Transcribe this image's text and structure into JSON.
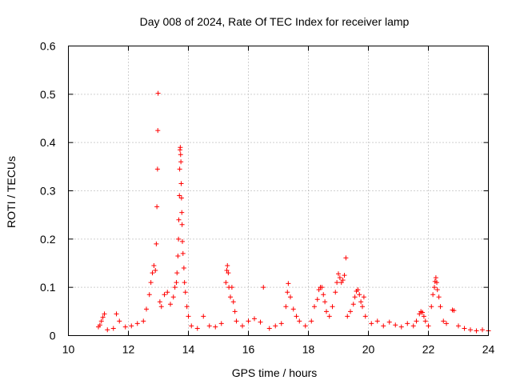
{
  "chart_data": {
    "type": "scatter",
    "title": "Day 008 of 2024, Rate Of TEC Index for receiver lamp",
    "xlabel": "GPS time / hours",
    "ylabel": "ROTI / TECUs",
    "xlim": [
      10,
      24
    ],
    "ylim": [
      0,
      0.6
    ],
    "xticks": [
      10,
      12,
      14,
      16,
      18,
      20,
      22,
      24
    ],
    "yticks": [
      0,
      0.1,
      0.2,
      0.3,
      0.4,
      0.5,
      0.6
    ],
    "xtick_labels": [
      "10",
      "12",
      "14",
      "16",
      "18",
      "20",
      "22",
      "24"
    ],
    "ytick_labels": [
      "0",
      "0.1",
      "0.2",
      "0.3",
      "0.4",
      "0.5",
      "0.6"
    ],
    "grid": true,
    "marker": "+",
    "color": "#ff0000",
    "series": [
      {
        "name": "ROTI",
        "points": [
          [
            11.0,
            0.018
          ],
          [
            11.05,
            0.022
          ],
          [
            11.1,
            0.03
          ],
          [
            11.15,
            0.038
          ],
          [
            11.2,
            0.045
          ],
          [
            11.3,
            0.012
          ],
          [
            11.5,
            0.015
          ],
          [
            11.6,
            0.045
          ],
          [
            11.7,
            0.03
          ],
          [
            11.9,
            0.018
          ],
          [
            12.1,
            0.02
          ],
          [
            12.3,
            0.025
          ],
          [
            12.5,
            0.03
          ],
          [
            12.6,
            0.055
          ],
          [
            12.7,
            0.085
          ],
          [
            12.75,
            0.11
          ],
          [
            12.8,
            0.13
          ],
          [
            12.85,
            0.145
          ],
          [
            12.9,
            0.135
          ],
          [
            12.93,
            0.19
          ],
          [
            12.95,
            0.267
          ],
          [
            12.97,
            0.345
          ],
          [
            12.98,
            0.425
          ],
          [
            12.99,
            0.502
          ],
          [
            13.05,
            0.07
          ],
          [
            13.1,
            0.06
          ],
          [
            13.2,
            0.085
          ],
          [
            13.3,
            0.09
          ],
          [
            13.4,
            0.065
          ],
          [
            13.5,
            0.08
          ],
          [
            13.55,
            0.1
          ],
          [
            13.6,
            0.11
          ],
          [
            13.62,
            0.13
          ],
          [
            13.65,
            0.165
          ],
          [
            13.67,
            0.2
          ],
          [
            13.68,
            0.24
          ],
          [
            13.7,
            0.29
          ],
          [
            13.71,
            0.345
          ],
          [
            13.72,
            0.385
          ],
          [
            13.73,
            0.39
          ],
          [
            13.74,
            0.375
          ],
          [
            13.75,
            0.36
          ],
          [
            13.76,
            0.315
          ],
          [
            13.77,
            0.285
          ],
          [
            13.78,
            0.255
          ],
          [
            13.79,
            0.23
          ],
          [
            13.8,
            0.195
          ],
          [
            13.82,
            0.17
          ],
          [
            13.85,
            0.14
          ],
          [
            13.87,
            0.11
          ],
          [
            13.9,
            0.09
          ],
          [
            13.95,
            0.06
          ],
          [
            14.0,
            0.04
          ],
          [
            14.1,
            0.02
          ],
          [
            14.3,
            0.015
          ],
          [
            14.5,
            0.04
          ],
          [
            14.7,
            0.02
          ],
          [
            14.9,
            0.018
          ],
          [
            15.1,
            0.025
          ],
          [
            15.25,
            0.11
          ],
          [
            15.28,
            0.135
          ],
          [
            15.3,
            0.145
          ],
          [
            15.33,
            0.13
          ],
          [
            15.35,
            0.1
          ],
          [
            15.4,
            0.08
          ],
          [
            15.45,
            0.1
          ],
          [
            15.5,
            0.07
          ],
          [
            15.55,
            0.05
          ],
          [
            15.6,
            0.03
          ],
          [
            15.8,
            0.02
          ],
          [
            16.0,
            0.03
          ],
          [
            16.2,
            0.035
          ],
          [
            16.4,
            0.028
          ],
          [
            16.5,
            0.1
          ],
          [
            16.7,
            0.015
          ],
          [
            16.9,
            0.02
          ],
          [
            17.1,
            0.025
          ],
          [
            17.25,
            0.06
          ],
          [
            17.3,
            0.09
          ],
          [
            17.33,
            0.108
          ],
          [
            17.4,
            0.08
          ],
          [
            17.5,
            0.055
          ],
          [
            17.6,
            0.04
          ],
          [
            17.7,
            0.03
          ],
          [
            17.9,
            0.02
          ],
          [
            18.1,
            0.03
          ],
          [
            18.2,
            0.06
          ],
          [
            18.3,
            0.075
          ],
          [
            18.35,
            0.095
          ],
          [
            18.4,
            0.1
          ],
          [
            18.45,
            0.1
          ],
          [
            18.5,
            0.085
          ],
          [
            18.55,
            0.07
          ],
          [
            18.6,
            0.05
          ],
          [
            18.7,
            0.04
          ],
          [
            18.8,
            0.06
          ],
          [
            18.9,
            0.09
          ],
          [
            18.95,
            0.11
          ],
          [
            19.0,
            0.128
          ],
          [
            19.05,
            0.12
          ],
          [
            19.1,
            0.11
          ],
          [
            19.15,
            0.115
          ],
          [
            19.2,
            0.125
          ],
          [
            19.25,
            0.161
          ],
          [
            19.3,
            0.04
          ],
          [
            19.4,
            0.05
          ],
          [
            19.5,
            0.065
          ],
          [
            19.55,
            0.08
          ],
          [
            19.6,
            0.092
          ],
          [
            19.65,
            0.095
          ],
          [
            19.7,
            0.085
          ],
          [
            19.75,
            0.07
          ],
          [
            19.8,
            0.06
          ],
          [
            19.85,
            0.08
          ],
          [
            19.9,
            0.04
          ],
          [
            20.1,
            0.025
          ],
          [
            20.3,
            0.03
          ],
          [
            20.5,
            0.02
          ],
          [
            20.7,
            0.028
          ],
          [
            20.9,
            0.022
          ],
          [
            21.1,
            0.018
          ],
          [
            21.3,
            0.025
          ],
          [
            21.5,
            0.02
          ],
          [
            21.6,
            0.03
          ],
          [
            21.7,
            0.045
          ],
          [
            21.75,
            0.05
          ],
          [
            21.8,
            0.048
          ],
          [
            21.85,
            0.04
          ],
          [
            21.9,
            0.03
          ],
          [
            22.0,
            0.02
          ],
          [
            22.1,
            0.06
          ],
          [
            22.15,
            0.085
          ],
          [
            22.2,
            0.1
          ],
          [
            22.22,
            0.112
          ],
          [
            22.25,
            0.12
          ],
          [
            22.28,
            0.11
          ],
          [
            22.3,
            0.095
          ],
          [
            22.35,
            0.08
          ],
          [
            22.4,
            0.06
          ],
          [
            22.5,
            0.03
          ],
          [
            22.6,
            0.025
          ],
          [
            22.8,
            0.053
          ],
          [
            22.85,
            0.052
          ],
          [
            23.0,
            0.02
          ],
          [
            23.2,
            0.015
          ],
          [
            23.4,
            0.012
          ],
          [
            23.6,
            0.01
          ],
          [
            23.8,
            0.012
          ],
          [
            24.0,
            0.01
          ]
        ]
      }
    ]
  }
}
